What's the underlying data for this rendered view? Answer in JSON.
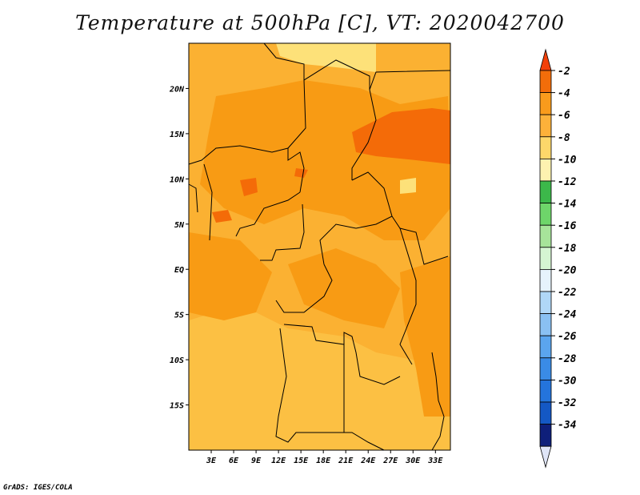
{
  "title": "Temperature at 500hPa [C], VT: 2020042700",
  "credit": "GrADS: IGES/COLA",
  "map": {
    "lat_ticks": [
      "20N",
      "15N",
      "10N",
      "5N",
      "EQ",
      "5S",
      "10S",
      "15S"
    ],
    "lon_ticks": [
      "3E",
      "6E",
      "9E",
      "12E",
      "15E",
      "18E",
      "21E",
      "24E",
      "27E",
      "30E",
      "33E"
    ],
    "lat_values": [
      20,
      15,
      10,
      5,
      0,
      -5,
      -10,
      -15
    ],
    "lon_values": [
      3,
      6,
      9,
      12,
      15,
      18,
      21,
      24,
      27,
      30,
      33
    ],
    "lon_range": [
      0,
      35
    ],
    "lat_range": [
      -20,
      25
    ],
    "background_color": "#fbb132",
    "regions": [
      {
        "name": "northwest-band",
        "color": "#fbb132"
      },
      {
        "name": "south-lighter",
        "color": "#fcc043"
      },
      {
        "name": "warm-core",
        "color": "#f89b14"
      },
      {
        "name": "hot-patch",
        "color": "#f46b08"
      },
      {
        "name": "cool-patch",
        "color": "#fde179"
      }
    ]
  },
  "colorbar": {
    "labels": [
      "-2",
      "-4",
      "-6",
      "-8",
      "-10",
      "-12",
      "-14",
      "-16",
      "-18",
      "-20",
      "-22",
      "-24",
      "-26",
      "-28",
      "-30",
      "-32",
      "-34"
    ],
    "colors": [
      "#f26d0a",
      "#f99b1c",
      "#fcb13a",
      "#fdd76a",
      "#fef2b0",
      "#3cb84a",
      "#6ed56a",
      "#a7e49a",
      "#d5f5d2",
      "#e6f3fc",
      "#b0d7f7",
      "#8ac0f2",
      "#5ba5ee",
      "#3a8be6",
      "#2474dc",
      "#1458c4",
      "#0e1f7a"
    ],
    "top_arrow_color": "#f2400a",
    "bottom_arrow_color": "#dfe5f7"
  }
}
